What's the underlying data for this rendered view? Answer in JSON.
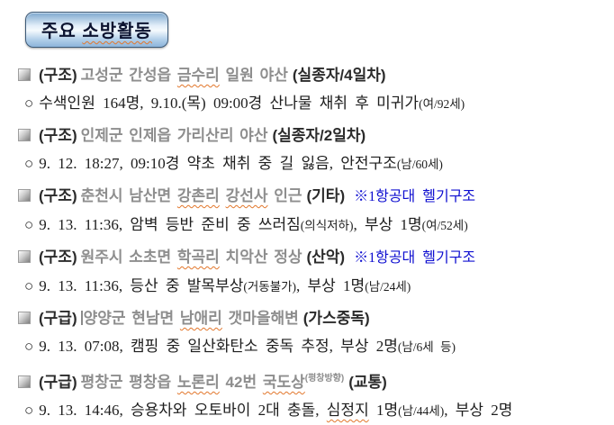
{
  "title": {
    "pre": "주요 ",
    "wavy": "소방활동"
  },
  "markers": {
    "body_marker": "○"
  },
  "colors": {
    "note_blue": "#0f0fd0",
    "spellcheck_wavy": "#e2762b",
    "banner_fill_blue": "#8db4da",
    "banner_border": "#3d5a77",
    "location_gray": "#8e8e8e",
    "heading_dark": "#2b2b2b"
  },
  "items": [
    {
      "category": "(구조)",
      "head": {
        "pre": "고성군 간성읍 ",
        "wavy1": "금수리",
        "mid": "",
        "wavy2": "",
        "sup": "",
        "post": " 일원 야산",
        "tag": "(실종자/4일차)",
        "note": ""
      },
      "body": {
        "pre": "수색인원 164명, 9.10.(목) 09:00경 산나물 채취 후 미귀가",
        "wavy": "",
        "mid": "",
        "paren1": "(여/92세)",
        "mid2": "",
        "paren2": ""
      }
    },
    {
      "category": "(구조)",
      "head": {
        "pre": "인제군 인제읍 가리산리 야산",
        "wavy1": "",
        "mid": "",
        "wavy2": "",
        "sup": "",
        "post": "",
        "tag": "(실종자/2일차)",
        "note": ""
      },
      "body": {
        "pre": "9. 12. 18:27, 09:10경 약초 채취 중 길 잃음, 안전구조",
        "wavy": "",
        "mid": "",
        "paren1": "(남/60세)",
        "mid2": "",
        "paren2": ""
      }
    },
    {
      "category": "(구조)",
      "head": {
        "pre": "춘천시 남산면 ",
        "wavy1": "강촌리",
        "mid": " ",
        "wavy2": "강선사",
        "sup": "",
        "post": " 인근",
        "tag": "(기타)",
        "note": "※1항공대 헬기구조"
      },
      "body": {
        "pre": "9. 13. 11:36, 암벽 등반 준비 중 쓰러짐",
        "wavy": "",
        "mid": "",
        "paren1": "(의식저하)",
        "mid2": ", 부상 1명",
        "paren2": "(여/52세)"
      }
    },
    {
      "category": "(구조)",
      "head": {
        "pre": "원주시 소초면 ",
        "wavy1": "학곡리",
        "mid": "",
        "wavy2": "",
        "sup": "",
        "post": " 치악산 정상",
        "tag": "(산악)",
        "note": "※1항공대 헬기구조"
      },
      "body": {
        "pre": "9. 13. 11:36, 등산 중 발목부상",
        "wavy": "",
        "mid": "",
        "paren1": "(거동불가)",
        "mid2": ", 부상 1명",
        "paren2": "(남/24세)"
      }
    },
    {
      "category": "(구급)",
      "head": {
        "pre": "양양군 현남면 ",
        "wavy1": "남애리",
        "mid": "",
        "wavy2": "",
        "sup": "",
        "post": " 갯마을해변",
        "tag": "(가스중독)",
        "note": ""
      },
      "body": {
        "pre": "9. 13. 07:08, 캠핑 중 일산화탄소 중독 추정, 부상 2명",
        "wavy": "",
        "mid": "",
        "paren1": "(남/6세 등)",
        "mid2": "",
        "paren2": ""
      }
    },
    {
      "category": "(구급)",
      "head": {
        "pre": "평창군 평창읍 ",
        "wavy1": "노론리",
        "mid": " 42번 ",
        "wavy2": "국도상",
        "sup": "(평창방향)",
        "post": "",
        "tag": "(교통)",
        "note": ""
      },
      "body": {
        "pre": "9. 13. 14:46, 승용차와 오토바이 2대 충돌, ",
        "wavy": "심정지",
        "mid": " 1명",
        "paren1": "(남/44세)",
        "mid2": ", 부상 2명",
        "paren2": ""
      }
    }
  ]
}
